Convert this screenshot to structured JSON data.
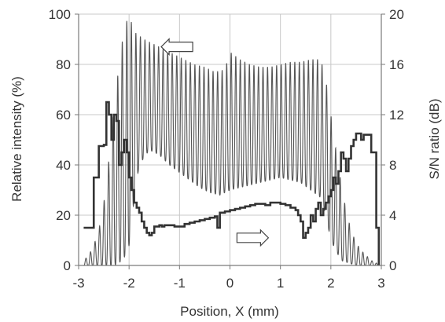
{
  "chart_data": {
    "type": "line",
    "xlabel": "Position, X  (mm)",
    "ylabel_left": "Relative  intensity  (%)",
    "ylabel_right": "S/N ratio  (dB)",
    "xlim": [
      -3,
      3
    ],
    "ylim_left": [
      0,
      100
    ],
    "ylim_right": [
      0,
      20
    ],
    "x_ticks": [
      -3,
      -2,
      -1,
      0,
      1,
      2,
      3
    ],
    "x_tick_labels": [
      "-3",
      "-2",
      "-1",
      "0",
      "1",
      "2",
      "3"
    ],
    "y_left_ticks": [
      0,
      20,
      40,
      60,
      80,
      100
    ],
    "y_left_tick_labels": [
      "0",
      "20",
      "40",
      "60",
      "80",
      "100"
    ],
    "y_right_ticks": [
      0,
      4,
      8,
      12,
      16,
      20
    ],
    "y_right_tick_labels": [
      "0",
      "4",
      "8",
      "12",
      "16",
      "20"
    ],
    "grid": true,
    "annotations": [
      {
        "kind": "arrow-left",
        "series": "relative_intensity",
        "x": -1.05,
        "y_left": 87
      },
      {
        "kind": "arrow-right",
        "series": "sn_ratio",
        "x": 0.45,
        "y_left": 11
      }
    ],
    "series": [
      {
        "id": "relative_intensity",
        "axis": "left",
        "style": "thin",
        "oscillating": true,
        "x_range": [
          -2.9,
          2.95
        ],
        "period": 0.09,
        "max_envelope": {
          "x": [
            -2.9,
            -2.8,
            -2.7,
            -2.6,
            -2.5,
            -2.4,
            -2.3,
            -2.2,
            -2.1,
            -2.0,
            -1.9,
            -1.7,
            -1.5,
            -1.3,
            -1.1,
            -0.9,
            -0.7,
            -0.5,
            -0.3,
            -0.1,
            0.0,
            0.2,
            0.4,
            0.6,
            0.8,
            1.0,
            1.2,
            1.4,
            1.6,
            1.8,
            1.9,
            2.0,
            2.1,
            2.2,
            2.3,
            2.4,
            2.5,
            2.6,
            2.7,
            2.8,
            2.9,
            2.95
          ],
          "y": [
            2,
            4,
            8,
            14,
            25,
            42,
            62,
            80,
            94,
            100,
            93,
            90,
            88,
            86,
            84,
            82,
            80,
            79,
            77,
            78,
            85,
            82,
            80,
            79,
            79,
            80,
            81,
            81,
            82,
            82,
            74,
            60,
            46,
            33,
            22,
            14,
            9,
            6,
            4,
            2,
            1,
            0
          ]
        },
        "min_envelope": {
          "x": [
            -2.9,
            -2.5,
            -2.3,
            -2.2,
            -2.1,
            -2.0,
            -1.9,
            -1.8,
            -1.6,
            -1.4,
            -1.2,
            -1.0,
            -0.8,
            -0.6,
            -0.4,
            -0.2,
            0.0,
            0.2,
            0.4,
            0.6,
            0.8,
            1.0,
            1.2,
            1.4,
            1.6,
            1.8,
            1.9,
            2.0,
            2.2,
            2.5,
            2.95
          ],
          "y": [
            0,
            0,
            0,
            1,
            3,
            8,
            26,
            40,
            46,
            44,
            40,
            37,
            34,
            31,
            29,
            28,
            30,
            31,
            32,
            33,
            34,
            35,
            34,
            33,
            30,
            27,
            20,
            10,
            2,
            0,
            0
          ]
        }
      },
      {
        "id": "sn_ratio",
        "axis": "right",
        "style": "thick-step",
        "x": [
          -2.9,
          -2.8,
          -2.7,
          -2.6,
          -2.5,
          -2.45,
          -2.4,
          -2.35,
          -2.3,
          -2.25,
          -2.2,
          -2.15,
          -2.1,
          -2.05,
          -2.0,
          -1.95,
          -1.9,
          -1.85,
          -1.8,
          -1.75,
          -1.7,
          -1.65,
          -1.6,
          -1.55,
          -1.5,
          -1.45,
          -1.4,
          -1.35,
          -1.3,
          -1.2,
          -1.1,
          -1.0,
          -0.9,
          -0.8,
          -0.7,
          -0.6,
          -0.5,
          -0.4,
          -0.3,
          -0.25,
          -0.2,
          -0.1,
          0.0,
          0.1,
          0.2,
          0.3,
          0.4,
          0.5,
          0.6,
          0.7,
          0.8,
          0.9,
          1.0,
          1.1,
          1.2,
          1.3,
          1.35,
          1.4,
          1.45,
          1.5,
          1.55,
          1.6,
          1.65,
          1.7,
          1.75,
          1.8,
          1.85,
          1.9,
          1.95,
          2.0,
          2.05,
          2.1,
          2.15,
          2.2,
          2.25,
          2.3,
          2.35,
          2.4,
          2.45,
          2.5,
          2.55,
          2.6,
          2.65,
          2.7,
          2.8,
          2.9,
          2.95
        ],
        "y": [
          3.0,
          3.0,
          7.0,
          9.5,
          9.6,
          13.0,
          12.0,
          10.0,
          12.0,
          11.5,
          8.0,
          9.0,
          10.0,
          9.0,
          7.0,
          6.0,
          5.0,
          4.6,
          4.2,
          3.5,
          3.0,
          2.6,
          2.4,
          2.6,
          3.1,
          3.1,
          3.2,
          3.1,
          3.2,
          3.2,
          3.1,
          3.1,
          3.3,
          3.4,
          3.5,
          3.6,
          3.7,
          3.8,
          3.9,
          3.0,
          4.2,
          4.3,
          4.4,
          4.5,
          4.6,
          4.7,
          4.8,
          4.9,
          4.9,
          4.8,
          5.0,
          5.0,
          4.9,
          4.8,
          4.6,
          4.4,
          4.0,
          3.5,
          2.2,
          2.6,
          3.0,
          4.0,
          3.5,
          4.5,
          5.0,
          4.0,
          4.5,
          5.0,
          5.5,
          6.0,
          7.0,
          6.5,
          7.5,
          9.0,
          8.5,
          7.5,
          8.5,
          9.5,
          10.0,
          10.5,
          10.5,
          10.0,
          10.4,
          10.4,
          9.0,
          3.0,
          0.0
        ]
      }
    ]
  }
}
